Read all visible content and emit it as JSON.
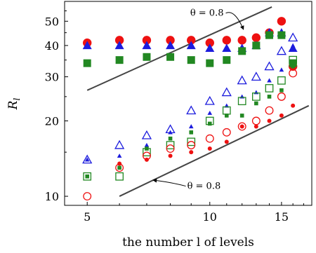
{
  "chart_data": {
    "type": "scatter",
    "title": "",
    "xlabel": "the number l of levels",
    "ylabel": "R_l",
    "x_scale": "log",
    "y_scale": "log",
    "xlim": [
      4.4,
      17.8
    ],
    "ylim": [
      9.2,
      60
    ],
    "xticks": [
      5,
      10,
      15
    ],
    "yticks": [
      10,
      20,
      30,
      40,
      50
    ],
    "grid": false,
    "legend": "none",
    "colors": {
      "red": "#ee1111",
      "blue": "#1c1cdd",
      "green": "#228822",
      "line": "#444444"
    },
    "series": [
      {
        "marker": "filled-circle-large",
        "color": "#ee1111",
        "x": [
          5,
          6,
          7,
          8,
          9,
          10,
          11,
          12,
          13,
          14,
          15,
          16
        ],
        "y": [
          41,
          42,
          42,
          42,
          42,
          41,
          42,
          42,
          43,
          45,
          50,
          33
        ]
      },
      {
        "marker": "filled-triangle-large",
        "color": "#1c1cdd",
        "x": [
          5,
          6,
          7,
          8,
          9,
          10,
          11,
          12,
          13,
          14,
          15,
          16
        ],
        "y": [
          40,
          40,
          40,
          40,
          40,
          39,
          39,
          39,
          40,
          45,
          45,
          39
        ]
      },
      {
        "marker": "filled-square-large",
        "color": "#228822",
        "x": [
          5,
          6,
          7,
          8,
          9,
          10,
          11,
          12,
          13,
          14,
          15,
          16
        ],
        "y": [
          34,
          35,
          36,
          36,
          35,
          34,
          35,
          38,
          40,
          44,
          44,
          34
        ]
      },
      {
        "marker": "open-triangle",
        "color": "#1c1cdd",
        "x": [
          5,
          6,
          7,
          8,
          9,
          10,
          11,
          12,
          13,
          14,
          15,
          16
        ],
        "y": [
          14,
          16,
          17.5,
          18.5,
          22,
          24,
          26,
          29,
          30,
          33,
          38,
          43
        ]
      },
      {
        "marker": "filled-triangle-small",
        "color": "#1c1cdd",
        "x": [
          5,
          6,
          7,
          8,
          9,
          10,
          11,
          12,
          13,
          14,
          15,
          16
        ],
        "y": [
          14,
          14.5,
          16,
          18,
          19,
          21.5,
          23,
          25,
          26,
          29,
          32,
          40
        ]
      },
      {
        "marker": "open-square",
        "color": "#228822",
        "x": [
          5,
          6,
          7,
          8,
          9,
          10,
          11,
          12,
          13,
          14,
          15,
          16
        ],
        "y": [
          12,
          12,
          15,
          16,
          16.5,
          20,
          22,
          24,
          25,
          27,
          29,
          35
        ]
      },
      {
        "marker": "filled-square-small",
        "color": "#228822",
        "x": [
          5,
          6,
          7,
          8,
          9,
          10,
          11,
          12,
          13,
          14,
          15,
          16
        ],
        "y": [
          12,
          13,
          15.5,
          17,
          18,
          19.5,
          21,
          21,
          23.5,
          25,
          26.5,
          33
        ]
      },
      {
        "marker": "open-circle",
        "color": "#ee1111",
        "x": [
          5,
          6,
          7,
          8,
          9,
          10,
          11,
          12,
          13,
          14,
          15,
          16
        ],
        "y": [
          10,
          13,
          14.5,
          15.5,
          16,
          17,
          18,
          19,
          20,
          22,
          25,
          31
        ]
      },
      {
        "marker": "filled-circle-small",
        "color": "#ee1111",
        "x": [
          6,
          7,
          8,
          9,
          10,
          11,
          12,
          13,
          14,
          15,
          16
        ],
        "y": [
          13.5,
          14,
          14.5,
          15,
          15.5,
          16.5,
          19,
          19,
          20,
          21,
          23
        ]
      }
    ],
    "lines": [
      {
        "x": [
          5,
          14.2
        ],
        "y": [
          26.5,
          57
        ]
      },
      {
        "x": [
          6,
          17.5
        ],
        "y": [
          10,
          23
        ]
      }
    ],
    "annotations": [
      {
        "text": "θ = 0.8",
        "x": 8.95,
        "y": 52.5,
        "arrow_to": [
          12.1,
          46.3
        ]
      },
      {
        "text": "θ = 0.8",
        "x": 8.8,
        "y": 10.7,
        "arrow_to": [
          7.25,
          11.6
        ]
      }
    ]
  }
}
